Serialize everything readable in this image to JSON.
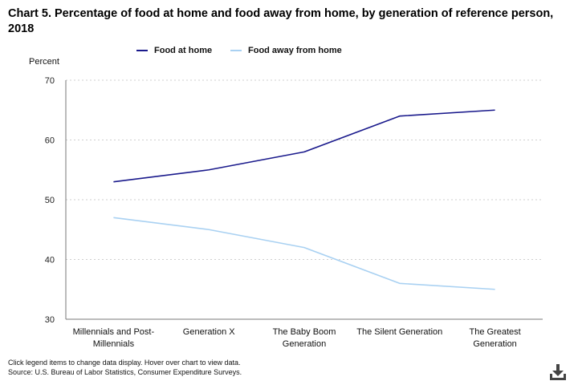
{
  "page": {
    "title": "Chart 5. Percentage of food at home and food away from home, by generation of reference person, 2018",
    "footer_line1": "Click legend items to change data display. Hover over chart to view data.",
    "footer_line2": "Source: U.S. Bureau of Labor Statistics, Consumer Expenditure Surveys.",
    "download_icon": "download-icon"
  },
  "legend": {
    "items": [
      {
        "label": "Food at home",
        "color": "#1a1a8c"
      },
      {
        "label": "Food away from home",
        "color": "#a9d1f2"
      }
    ]
  },
  "chart_data": {
    "type": "line",
    "title": "Chart 5. Percentage of food at home and food away from home, by generation of reference person, 2018",
    "ylabel": "Percent",
    "xlabel": "",
    "ylim": [
      30,
      70
    ],
    "yticks": [
      30,
      40,
      50,
      60,
      70
    ],
    "categories": [
      [
        "Millennials and Post-",
        "Millennials"
      ],
      [
        "Generation X"
      ],
      [
        "The Baby Boom",
        "Generation"
      ],
      [
        "The Silent Generation"
      ],
      [
        "The Greatest",
        "Generation"
      ]
    ],
    "series": [
      {
        "name": "Food at home",
        "color": "#1a1a8c",
        "values": [
          53,
          55,
          58,
          64,
          65
        ]
      },
      {
        "name": "Food away from home",
        "color": "#a9d1f2",
        "values": [
          47,
          45,
          42,
          36,
          35
        ]
      }
    ],
    "grid": true,
    "legend_position": "top-center"
  }
}
